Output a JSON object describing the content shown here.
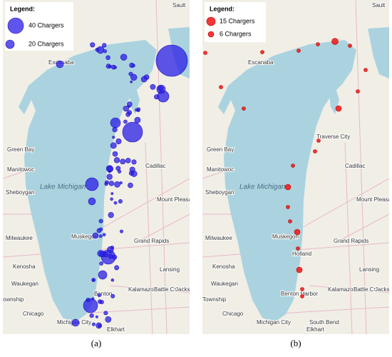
{
  "panels": [
    {
      "caption": "(a)",
      "legend": {
        "title": "Legend:",
        "items": [
          "40 Chargers",
          "20 Chargers"
        ]
      },
      "places": [
        "Sault",
        "Escanaba",
        "Green Bay",
        "Manitowoc",
        "Sheboygan",
        "Lake Michigan",
        "Milwaukee",
        "Kenosha",
        "Waukegan",
        "ownship",
        "Chicago",
        "Cadillac",
        "Mount Pleasant",
        "Muskegon",
        "Grand Rapids",
        "Lansing",
        "Kalamazoo",
        "Battle Creek",
        "Jacks",
        "Benton",
        "Michigan City",
        "Elkhart"
      ]
    },
    {
      "caption": "(b)",
      "legend": {
        "title": "Legend:",
        "items": [
          "15 Chargers",
          "6 Chargers"
        ]
      },
      "places": [
        "Sault",
        "Escanaba",
        "Green Bay",
        "Manitowoc",
        "Sheboygan",
        "Lake Michigan",
        "Milwaukee",
        "Kenosha",
        "Waukegan",
        "Township",
        "Chicago",
        "Traverse City",
        "Cadillac",
        "Mount Pleasant",
        "Muskegon",
        "Grand Rapids",
        "Holland",
        "Lansing",
        "Kalamazoo",
        "Battle Creek",
        "Jacks",
        "Benton Harbor",
        "Michigan City",
        "South Bend",
        "Elkhart"
      ]
    }
  ]
}
